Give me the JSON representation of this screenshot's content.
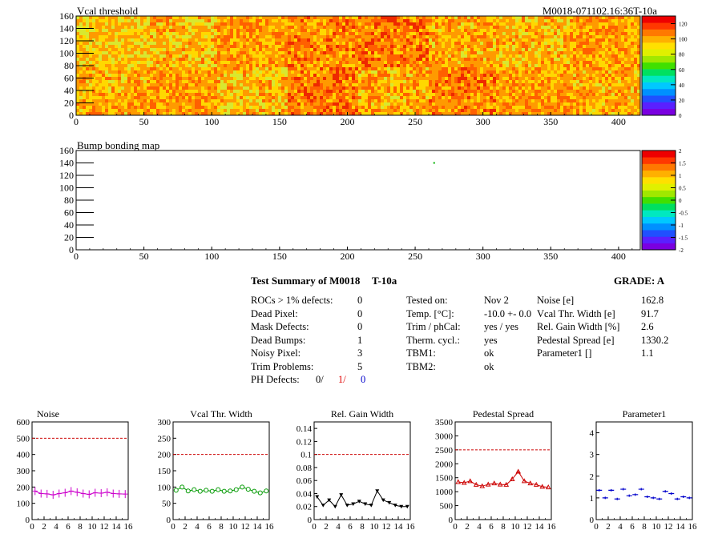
{
  "map_panels": [
    {
      "title": "Vcal threshold",
      "run_label": "M0018-071102.16:36T-10a",
      "x_ticks": [
        "0",
        "50",
        "100",
        "150",
        "200",
        "250",
        "300",
        "350",
        "400"
      ],
      "y_ticks": [
        "0",
        "20",
        "40",
        "60",
        "80",
        "100",
        "120",
        "140",
        "160"
      ],
      "z_ticks": [
        "0",
        "20",
        "40",
        "60",
        "80",
        "100",
        "120"
      ],
      "zlim": [
        0,
        130
      ],
      "xlim": [
        0,
        416
      ],
      "ylim": [
        0,
        160
      ]
    },
    {
      "title": "Bump bonding map",
      "x_ticks": [
        "0",
        "50",
        "100",
        "150",
        "200",
        "250",
        "300",
        "350",
        "400"
      ],
      "y_ticks": [
        "0",
        "20",
        "40",
        "60",
        "80",
        "100",
        "120",
        "140",
        "160"
      ],
      "z_ticks": [
        "-2",
        "-1.5",
        "-1",
        "-0.5",
        "0",
        "0.5",
        "1",
        "1.5",
        "2"
      ],
      "zlim": [
        -2,
        2
      ],
      "xlim": [
        0,
        416
      ],
      "ylim": [
        0,
        160
      ],
      "points": [
        {
          "x": 264,
          "y": 140
        }
      ]
    }
  ],
  "summary": {
    "title": "Test Summary of M0018",
    "temp_label": "T-10a",
    "grade_label": "GRADE:  A",
    "defects": [
      {
        "label": "ROCs > 1% defects:",
        "value": "0"
      },
      {
        "label": "Dead Pixel:",
        "value": "0"
      },
      {
        "label": "Mask Defects:",
        "value": "0"
      },
      {
        "label": "Dead Bumps:",
        "value": "1"
      },
      {
        "label": "Noisy Pixel:",
        "value": "3"
      },
      {
        "label": "Trim Problems:",
        "value": "5"
      }
    ],
    "ph_defects": {
      "label": "PH Defects:",
      "v1": "0/",
      "v2": "1/",
      "v3": "0"
    },
    "tests": [
      {
        "label": "Tested on:",
        "value": "Nov 2"
      },
      {
        "label": "Temp. [°C]:",
        "value": "-10.0 +- 0.0"
      },
      {
        "label": "Trim / phCal:",
        "value": "yes / yes"
      },
      {
        "label": "Therm. cycl.:",
        "value": "yes"
      },
      {
        "label": "TBM1:",
        "value": "ok"
      },
      {
        "label": "TBM2:",
        "value": "ok"
      }
    ],
    "params": [
      {
        "label": "Noise [e]",
        "value": "162.8"
      },
      {
        "label": "Vcal Thr. Width [e]",
        "value": "91.7"
      },
      {
        "label": "Rel. Gain Width [%]",
        "value": "2.6"
      },
      {
        "label": "Pedestal Spread [e]",
        "value": "1330.2"
      },
      {
        "label": "Parameter1 []",
        "value": "1.1"
      }
    ]
  },
  "chart_data": [
    {
      "type": "line",
      "title": "Noise",
      "x": [
        0,
        1,
        2,
        3,
        4,
        5,
        6,
        7,
        8,
        9,
        10,
        11,
        12,
        13,
        14,
        15
      ],
      "values": [
        175,
        160,
        158,
        152,
        160,
        165,
        175,
        168,
        160,
        155,
        165,
        162,
        168,
        160,
        158,
        157
      ],
      "ylim": [
        0,
        600
      ],
      "xlim": [
        0,
        16
      ],
      "y_ticks": [
        "0",
        "100",
        "200",
        "300",
        "400",
        "500",
        "600"
      ],
      "x_ticks": [
        "0",
        "2",
        "4",
        "6",
        "8",
        "10",
        "12",
        "14",
        "16"
      ],
      "threshold": 500,
      "color": "#cc00cc",
      "marker": "cross"
    },
    {
      "type": "line",
      "title": "Vcal Thr. Width",
      "x": [
        0,
        1,
        2,
        3,
        4,
        5,
        6,
        7,
        8,
        9,
        10,
        11,
        12,
        13,
        14,
        15
      ],
      "values": [
        90,
        100,
        88,
        92,
        87,
        90,
        87,
        92,
        87,
        88,
        92,
        100,
        93,
        87,
        82,
        88
      ],
      "ylim": [
        0,
        300
      ],
      "xlim": [
        0,
        16
      ],
      "y_ticks": [
        "0",
        "50",
        "100",
        "150",
        "200",
        "250",
        "300"
      ],
      "x_ticks": [
        "0",
        "2",
        "4",
        "6",
        "8",
        "10",
        "12",
        "14",
        "16"
      ],
      "threshold": 200,
      "color": "#009900",
      "marker": "circle"
    },
    {
      "type": "line",
      "title": "Rel. Gain Width",
      "x": [
        0,
        1,
        2,
        3,
        4,
        5,
        6,
        7,
        8,
        9,
        10,
        11,
        12,
        13,
        14,
        15
      ],
      "values": [
        0.035,
        0.022,
        0.03,
        0.02,
        0.038,
        0.022,
        0.024,
        0.028,
        0.024,
        0.022,
        0.044,
        0.03,
        0.026,
        0.022,
        0.02,
        0.02
      ],
      "ylim": [
        0,
        0.15
      ],
      "xlim": [
        0,
        16
      ],
      "y_ticks": [
        "0",
        "0.02",
        "0.04",
        "0.06",
        "0.08",
        "0.1",
        "0.12",
        "0.14"
      ],
      "y_tick_values": [
        0,
        0.02,
        0.04,
        0.06,
        0.08,
        0.1,
        0.12,
        0.14
      ],
      "x_ticks": [
        "0",
        "2",
        "4",
        "6",
        "8",
        "10",
        "12",
        "14",
        "16"
      ],
      "threshold": 0.1,
      "color": "#000000",
      "marker": "triangle-down"
    },
    {
      "type": "line",
      "title": "Pedestal Spread",
      "x": [
        0,
        1,
        2,
        3,
        4,
        5,
        6,
        7,
        8,
        9,
        10,
        11,
        12,
        13,
        14,
        15
      ],
      "values": [
        1350,
        1320,
        1380,
        1250,
        1200,
        1260,
        1300,
        1260,
        1250,
        1450,
        1720,
        1380,
        1300,
        1250,
        1180,
        1160
      ],
      "ylim": [
        0,
        3500
      ],
      "xlim": [
        0,
        16
      ],
      "y_ticks": [
        "0",
        "500",
        "1000",
        "1500",
        "2000",
        "2500",
        "3000",
        "3500"
      ],
      "x_ticks": [
        "0",
        "2",
        "4",
        "6",
        "8",
        "10",
        "12",
        "14",
        "16"
      ],
      "threshold": 2500,
      "color": "#cc0000",
      "marker": "triangle-up"
    },
    {
      "type": "scatter",
      "title": "Parameter1",
      "x": [
        0,
        1,
        2,
        3,
        4,
        5,
        6,
        7,
        8,
        9,
        10,
        11,
        12,
        13,
        14,
        15
      ],
      "values": [
        1.35,
        1.0,
        1.35,
        0.95,
        1.4,
        1.1,
        1.15,
        1.4,
        1.05,
        1.0,
        0.95,
        1.3,
        1.2,
        0.95,
        1.05,
        1.0
      ],
      "ylim": [
        0,
        4.5
      ],
      "xlim": [
        0,
        16
      ],
      "y_ticks": [
        "0",
        "1",
        "2",
        "3",
        "4"
      ],
      "x_ticks": [
        "0",
        "2",
        "4",
        "6",
        "8",
        "10",
        "12",
        "14",
        "16"
      ],
      "color": "#0000cc",
      "marker": "hbar"
    }
  ]
}
